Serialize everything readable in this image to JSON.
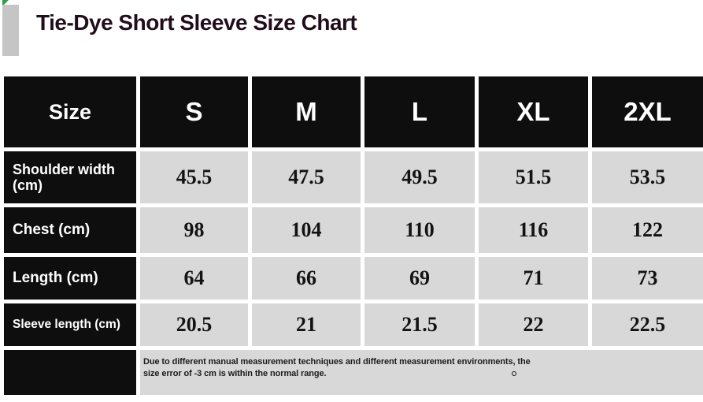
{
  "title": "Tie-Dye Short Sleeve Size Chart",
  "table": {
    "header": [
      "Size",
      "S",
      "M",
      "L",
      "XL",
      "2XL"
    ],
    "rows": [
      {
        "label": "Shoulder width (cm)",
        "values": [
          "45.5",
          "47.5",
          "49.5",
          "51.5",
          "53.5"
        ]
      },
      {
        "label": "Chest (cm)",
        "values": [
          "98",
          "104",
          "110",
          "116",
          "122"
        ]
      },
      {
        "label": "Length (cm)",
        "values": [
          "64",
          "66",
          "69",
          "71",
          "73"
        ]
      },
      {
        "label": "Sleeve length (cm)",
        "values": [
          "20.5",
          "21",
          "21.5",
          "22",
          "22.5"
        ]
      }
    ],
    "note_line1": "Due to different manual measurement techniques and different measurement environments, the",
    "note_line2": "size error of -3 cm is within the normal range."
  },
  "chart_data": {
    "type": "table",
    "title": "Tie-Dye Short Sleeve Size Chart",
    "columns": [
      "Size",
      "S",
      "M",
      "L",
      "XL",
      "2XL"
    ],
    "rows": [
      [
        "Shoulder width (cm)",
        45.5,
        47.5,
        49.5,
        51.5,
        53.5
      ],
      [
        "Chest (cm)",
        98,
        104,
        110,
        116,
        122
      ],
      [
        "Length (cm)",
        64,
        66,
        69,
        71,
        73
      ],
      [
        "Sleeve length (cm)",
        20.5,
        21,
        21.5,
        22,
        22.5
      ]
    ],
    "note": "Due to different manual measurement techniques and different measurement environments, the size error of -3 cm is within the normal range."
  },
  "colors": {
    "header_bg": "#0e0e0e",
    "header_text": "#ffffff",
    "value_cell_bg": "#d8d8d8",
    "value_text": "#131313",
    "title_text": "#220d1c",
    "accent_bar": "#c5c5c5",
    "corner_marker_green": "#2f9e41",
    "page_bg": "#ffffff"
  }
}
